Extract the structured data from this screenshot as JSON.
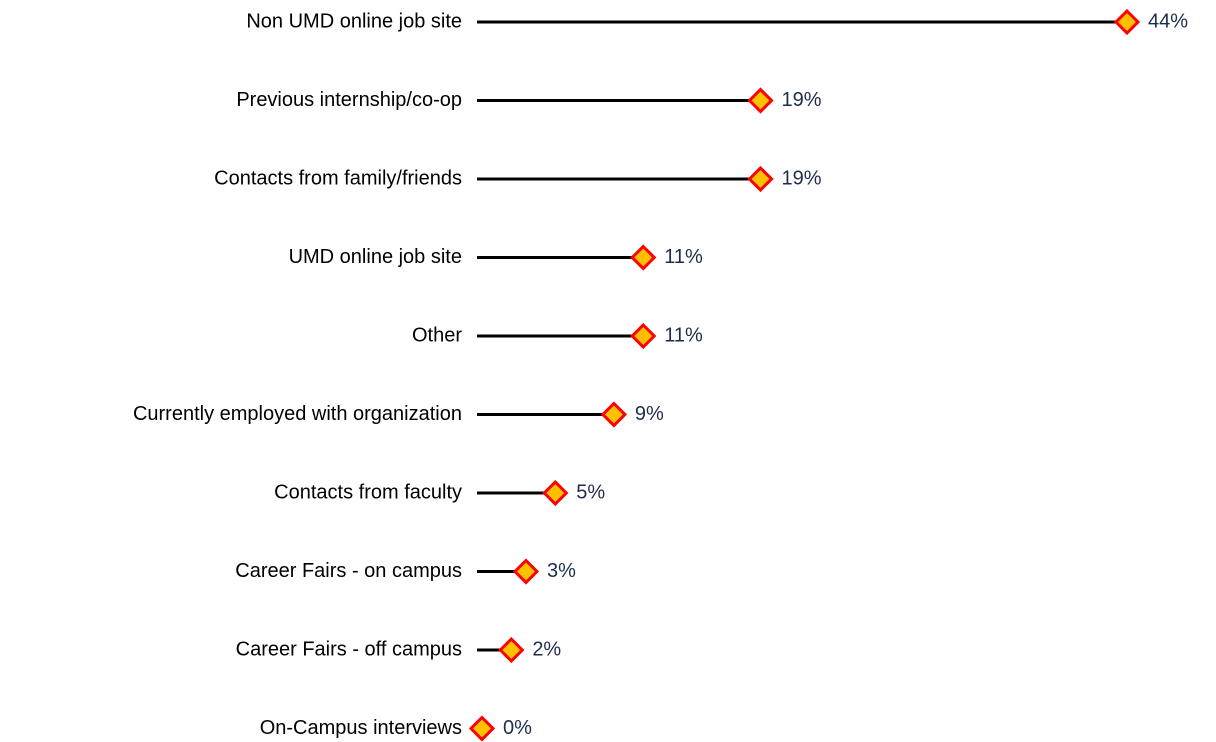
{
  "chart_data": {
    "type": "lollipop",
    "categories": [
      "Non UMD online job site",
      "Previous internship/co-op",
      "Contacts from family/friends",
      "UMD online job site",
      "Other",
      "Currently employed with organization",
      "Contacts from faculty",
      "Career Fairs - on campus",
      "Career Fairs - off campus",
      "On-Campus interviews"
    ],
    "values": [
      44,
      19,
      19,
      11,
      11,
      9,
      5,
      3,
      2,
      0
    ],
    "value_labels": [
      "44%",
      "19%",
      "19%",
      "11%",
      "11%",
      "9%",
      "5%",
      "3%",
      "2%",
      "0%"
    ],
    "line_color": "#000000",
    "marker_color": "#ffc000",
    "marker_edge_color": "#ff0000"
  }
}
